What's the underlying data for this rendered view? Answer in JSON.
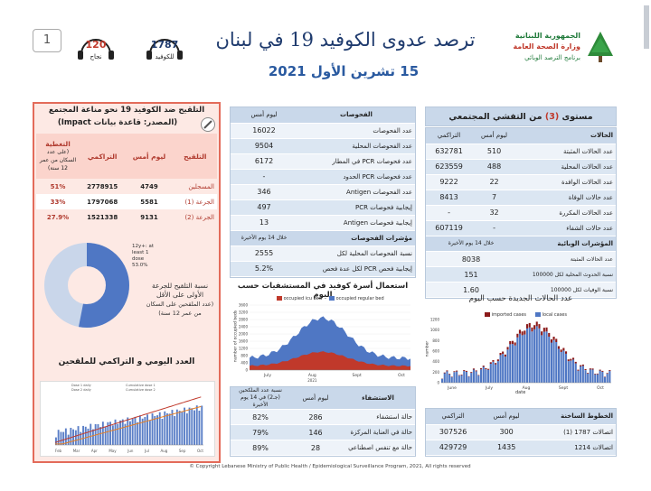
{
  "header": {
    "page_num": "1",
    "deaths_badge": {
      "value": "120",
      "label": "نجاح"
    },
    "covid_badge": {
      "value": "1787",
      "label": "للكوفيد"
    },
    "title": "ترصد عدوى الكوفيد 19 في لبنان",
    "date": "15 تشرين الأول 2021",
    "ministry": [
      "الجمهورية اللبنانية",
      "وزارة الصحة العامة",
      "برنامج الترصد الوبائي"
    ]
  },
  "vaccine": {
    "title": "التلقيح ضد الكوفيد 19  نحو مناعة المجتمع",
    "source": "(المصدر: قاعدة بيانات Impact)",
    "headers": [
      "التلقيح",
      "ليوم أمس",
      "التراكمي",
      "التغطية"
    ],
    "coverage_note": "(على عدد السكان من عمر 12 سنة)",
    "rows": [
      {
        "label": "المسجلين",
        "yesterday": "4749",
        "cumulative": "2778915",
        "coverage": "51%"
      },
      {
        "label": "الجرعة (1)",
        "yesterday": "5581",
        "cumulative": "1797068",
        "coverage": "33%"
      },
      {
        "label": "الجرعة (2)",
        "yesterday": "9131",
        "cumulative": "1521338",
        "coverage": "27.9%"
      }
    ],
    "pie_legend": [
      "12y+: at",
      "least 1",
      "dose",
      "53.0%"
    ],
    "pie_caption": [
      "نسبة التلقيح للجرعة",
      "الأولى على الأقل",
      "(عدد الملقحين على السكان",
      "من عمر 12 سنة)"
    ],
    "daily_title": "العدد اليومي و التراكمي للملقحين",
    "mini_legend": [
      "Dose 1 daily",
      "Dose 2 daily",
      "Cumulative dose 1",
      "Cumulative dose 2"
    ],
    "mini_months": [
      "Feb",
      "Mar",
      "Apr",
      "May",
      "Jun",
      "Jul",
      "Aug",
      "Sep",
      "Oct"
    ]
  },
  "tests": {
    "headers": [
      "الفحوصات",
      "ليوم أمس"
    ],
    "rows": [
      {
        "label": "عدد الفحوصات",
        "value": "16022"
      },
      {
        "label": "عدد الفحوصات المحلية",
        "value": "9504"
      },
      {
        "label": "عدد فحوصات PCR في المطار",
        "value": "6172"
      },
      {
        "label": "عدد فحوصات PCR الحدود",
        "value": "-"
      },
      {
        "label": "عدد الفحوصات Antigen",
        "value": "346"
      },
      {
        "label": "إيجابية فحوصات PCR",
        "value": "497"
      },
      {
        "label": "إيجابية فحوصات Antigen",
        "value": "13"
      }
    ],
    "indicators_headers": [
      "مؤشرات الفحوصات",
      "خلال 14 يوم الأخيرة"
    ],
    "indicators": [
      {
        "label": "نسبة الفحوصات المحلية لكل",
        "value": "2555"
      },
      {
        "label": "إيجابية فحص PCR لكل عدة فحص",
        "value": "5.2%"
      }
    ]
  },
  "community": {
    "title_pre": "مستوى",
    "title_level": "(3)",
    "title_post": "من التفشي المجتمعي",
    "headers": [
      "الحالات",
      "ليوم أمس",
      "التراكمي"
    ],
    "rows": [
      {
        "label": "عدد الحالات المثبتة",
        "yesterday": "510",
        "cumulative": "632781"
      },
      {
        "label": "عدد الحالات المحلية",
        "yesterday": "488",
        "cumulative": "623559"
      },
      {
        "label": "عدد الحالات الوافدة",
        "yesterday": "22",
        "cumulative": "9222"
      },
      {
        "label": "عدد حالات الوفاة",
        "yesterday": "7",
        "cumulative": "8413"
      },
      {
        "label": "عدد الحالات المكررة",
        "yesterday": "32",
        "cumulative": "-"
      },
      {
        "label": "عدد حالات الشفاء",
        "yesterday": "-",
        "cumulative": "607119"
      }
    ],
    "epi_headers": [
      "المؤشرات الوبائية",
      "خلال 14 يوم الأخيرة"
    ],
    "epi_rows": [
      {
        "label": "عدد الحالات المثبتة",
        "value": "8038"
      },
      {
        "label": "نسبة الحدوث المحلية لكل 100000",
        "value": "151"
      },
      {
        "label": "نسبة الوفيات لكل 100000",
        "value": "1.60"
      }
    ]
  },
  "beds": {
    "title": "استعمال أسرة كوفيد في المستشفيات حسب اليوم",
    "legend": [
      "occupied icu bed",
      "occupied regular bed"
    ],
    "ylabel": "number of occupied beds",
    "yticks": [
      "0",
      "400",
      "800",
      "1200",
      "1600",
      "2000",
      "2400",
      "2800",
      "3200",
      "3600"
    ],
    "months": [
      "July",
      "Aug",
      "Sept",
      "Oct"
    ],
    "month_sub": "2021",
    "colors": {
      "icu": "#c0392b",
      "regular": "#4f77c4"
    }
  },
  "cases_chart": {
    "title": "عدد الحالات الجديدة حسب اليوم",
    "legend": [
      "imported cases",
      "local cases"
    ],
    "ylabel": "number",
    "yticks": [
      "0",
      "200",
      "400",
      "600",
      "800",
      "1000",
      "1200"
    ],
    "months": [
      "June",
      "July",
      "Aug",
      "Sept",
      "Oct"
    ],
    "xlabel": "date",
    "colors": {
      "imported": "#8b1a1a",
      "local": "#4f77c4"
    }
  },
  "hospital": {
    "headers": [
      "الاستشفاء",
      "ليوم أمس",
      "نسبة عدد الملكحين (جـ2) في 14 يوم الأخيرة"
    ],
    "rows": [
      {
        "label": "حالة استشفاء",
        "value": "286",
        "pct": "82%"
      },
      {
        "label": "حالة في العناية المركزة",
        "value": "146",
        "pct": "79%"
      },
      {
        "label": "حالة مع تنفس اصطناعي",
        "value": "28",
        "pct": "89%"
      }
    ]
  },
  "hotlines": {
    "headers": [
      "الخطوط الساخنة",
      "ليوم أمس",
      "التراكمي"
    ],
    "rows": [
      {
        "label": "اتصالات 1787 (1)",
        "yesterday": "300",
        "cumulative": "307526"
      },
      {
        "label": "اتصالات 1214",
        "yesterday": "1435",
        "cumulative": "429729"
      }
    ]
  },
  "footer": "© Copyright Lebanese Ministry of Public Health / Epidemiological Surveillance Program, 2021, All rights reserved"
}
